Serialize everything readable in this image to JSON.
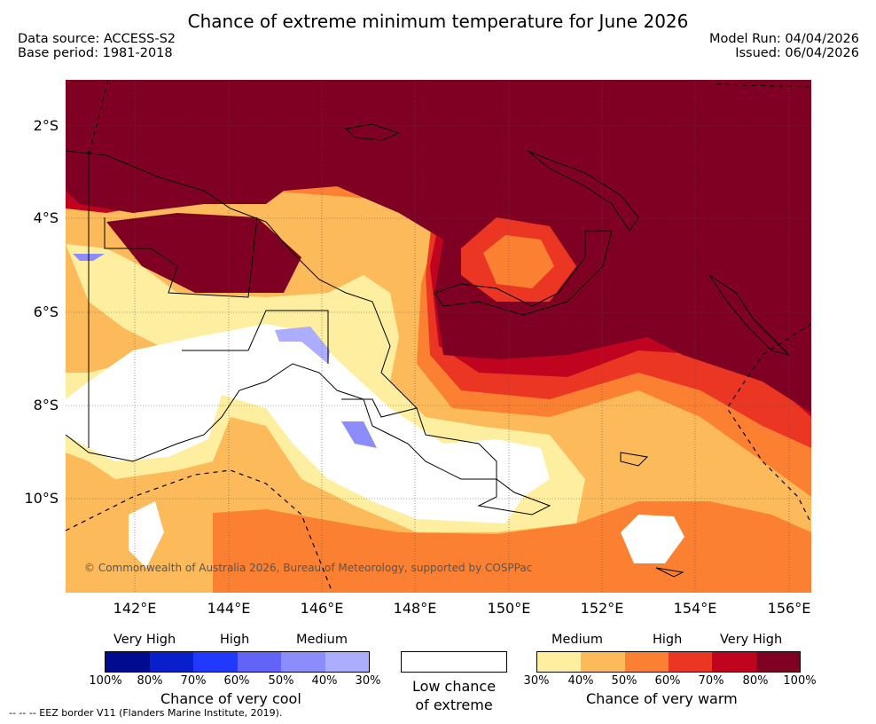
{
  "title": "Chance of extreme minimum temperature for June 2026",
  "meta": {
    "data_source": "Data source: ACCESS-S2",
    "base_period": "Base period: 1981-2018",
    "model_run": "Model Run: 04/04/2026",
    "issued": "Issued: 06/04/2026"
  },
  "map": {
    "lat_labels": [
      "2°S",
      "4°S",
      "6°S",
      "8°S",
      "10°S"
    ],
    "lon_labels": [
      "142°E",
      "144°E",
      "146°E",
      "148°E",
      "150°E",
      "152°E",
      "154°E",
      "156°E"
    ],
    "copyright": "© Commonwealth of Australia 2026, Bureau of Meteorology, supported by COSPPac"
  },
  "legend": {
    "cool": {
      "categories": [
        "Very High",
        "High",
        "Medium"
      ],
      "ticks": [
        "100%",
        "80%",
        "70%",
        "60%",
        "50%",
        "40%",
        "30%"
      ],
      "colors": [
        "#000b8f",
        "#0a1fcc",
        "#2039fd",
        "#6263f7",
        "#8c8cfd",
        "#adadfd"
      ],
      "caption": "Chance of very cool"
    },
    "neutral": {
      "caption_line1": "Low chance",
      "caption_line2": "of extreme",
      "color": "#ffffff"
    },
    "warm": {
      "categories": [
        "Medium",
        "High",
        "Very High"
      ],
      "ticks": [
        "30%",
        "40%",
        "50%",
        "60%",
        "70%",
        "80%",
        "100%"
      ],
      "colors": [
        "#feeea0",
        "#fdba5b",
        "#fc8031",
        "#ea3623",
        "#c0041f",
        "#7f0022"
      ],
      "caption": "Chance of very warm"
    },
    "eez_note": "-- -- -- EEZ border V11 (Flanders Marine Institute, 2019)."
  }
}
